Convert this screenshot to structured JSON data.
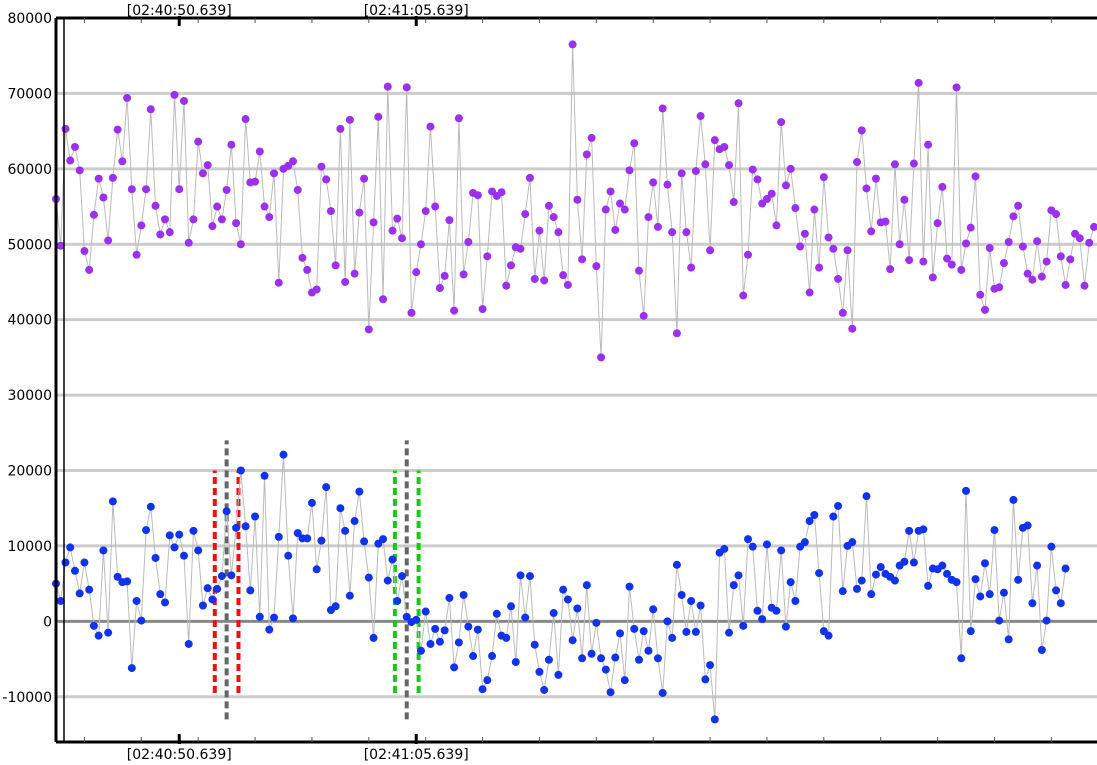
{
  "chart_data": {
    "type": "scatter",
    "title": "",
    "xlabel": "",
    "ylabel": "",
    "ylim": [
      -16000,
      80000
    ],
    "y_ticks": [
      80000,
      70000,
      60000,
      50000,
      40000,
      30000,
      20000,
      10000,
      0,
      -10000
    ],
    "y_tick_labels": [
      "80000",
      "70000",
      "60000",
      "50000",
      "40000",
      "30000",
      "20000",
      "10000",
      "0",
      "-10000"
    ],
    "grid": true,
    "legend": "none",
    "time_markers": [
      {
        "label": "[02:40:50.639]",
        "sample": 26
      },
      {
        "label": "[02:41:05.639]",
        "sample": 76
      }
    ],
    "event_markers": [
      {
        "color": "#ee1111",
        "sample": 33.5,
        "y_range": [
          -9500,
          20000
        ]
      },
      {
        "color": "#666666",
        "sample": 36,
        "y_range": [
          -13000,
          24000
        ]
      },
      {
        "color": "#ee1111",
        "sample": 38.5,
        "y_range": [
          -9500,
          20000
        ]
      },
      {
        "color": "#11cc11",
        "sample": 71.5,
        "y_range": [
          -9500,
          20000
        ]
      },
      {
        "color": "#666666",
        "sample": 74,
        "y_range": [
          -13000,
          24000
        ]
      },
      {
        "color": "#11cc11",
        "sample": 76.5,
        "y_range": [
          -9500,
          20000
        ]
      }
    ],
    "series": [
      {
        "color": "#9b30f0",
        "values": [
          56000,
          49800,
          65300,
          61100,
          62900,
          59800,
          49100,
          46600,
          53900,
          58700,
          56200,
          50500,
          58800,
          65200,
          61000,
          69400,
          57300,
          48600,
          52500,
          57300,
          67900,
          55100,
          51300,
          53300,
          51600,
          69800,
          57300,
          69000,
          50200,
          53300,
          63600,
          59400,
          60500,
          52400,
          55000,
          53300,
          57200,
          63200,
          52800,
          50000,
          66600,
          58200,
          58300,
          62300,
          55000,
          53600,
          59400,
          44900,
          60000,
          60400,
          61000,
          57200,
          48200,
          46600,
          43600,
          44000,
          60300,
          58600,
          54400,
          47200,
          65300,
          45000,
          66500,
          46100,
          54200,
          58700,
          38700,
          52900,
          66900,
          42700,
          70900,
          51800,
          53400,
          50800,
          70800,
          40900,
          46300,
          50000,
          54400,
          65600,
          55000,
          44200,
          45800,
          53200,
          41200,
          66700,
          46000,
          50300,
          56800,
          56500,
          41400,
          48400,
          57000,
          56400,
          56900,
          44500,
          47200,
          49600,
          49400,
          54000,
          58800,
          45400,
          51800,
          45200,
          55100,
          53600,
          51600,
          45900,
          44600,
          76500,
          55900,
          48000,
          61900,
          64100,
          47100,
          35000,
          54600,
          57000,
          51900,
          55400,
          54600,
          59800,
          63400,
          46500,
          40500,
          53600,
          58200,
          52300,
          68000,
          57900,
          51600,
          38200,
          59400,
          51600,
          46900,
          59700,
          67000,
          60600,
          49200,
          63800,
          62600,
          62900,
          60500,
          55600,
          68700,
          43200,
          48600,
          59900,
          58600,
          55400,
          56000,
          56700,
          52500,
          66200,
          57800,
          60000,
          54800,
          49700,
          51400,
          43600,
          54600,
          46900,
          58900,
          50900,
          49400,
          45400,
          40900,
          49200,
          38800,
          60900,
          65100,
          57400,
          51700,
          58700,
          52900,
          53000,
          46700,
          60600,
          50000,
          55900,
          47900,
          60700,
          71400,
          47700,
          63200,
          45600,
          52800,
          57600,
          48100,
          47300,
          70800,
          46600,
          50100,
          52200,
          59000,
          43300,
          41300,
          49500,
          44100,
          44300,
          47500,
          50300,
          53700,
          55100,
          49700,
          46100,
          45300,
          50400,
          45700,
          47700,
          54500,
          54000,
          48400,
          44600,
          48000,
          51400,
          50800,
          44500,
          50200,
          52300
        ]
      },
      {
        "color": "#1133ee",
        "values": [
          5000,
          2700,
          7800,
          9800,
          6700,
          3700,
          7800,
          4200,
          -600,
          -1900,
          9400,
          -1500,
          15900,
          5900,
          5200,
          5300,
          -6200,
          2700,
          100,
          12100,
          15200,
          8400,
          3600,
          2500,
          11400,
          9800,
          11500,
          8700,
          -3000,
          12000,
          9400,
          2100,
          4400,
          2900,
          4300,
          6000,
          14600,
          6100,
          12400,
          20000,
          12600,
          4100,
          13900,
          600,
          19300,
          -1100,
          500,
          11200,
          22100,
          8700,
          400,
          11700,
          11000,
          11000,
          15700,
          6900,
          10700,
          17800,
          1500,
          2000,
          15000,
          12000,
          3400,
          13300,
          17200,
          10600,
          5800,
          -2200,
          10300,
          10900,
          5400,
          8200,
          2700,
          6000,
          600,
          -100,
          200,
          -3900,
          1300,
          -3000,
          -1000,
          -2700,
          -1200,
          3100,
          -6100,
          -2800,
          3500,
          -700,
          -4600,
          -1100,
          -9000,
          -7800,
          -4600,
          1000,
          -1900,
          -2200,
          2000,
          -5400,
          6100,
          500,
          6000,
          -3100,
          -6700,
          -9100,
          -5100,
          1100,
          -7100,
          4200,
          2900,
          -2500,
          1700,
          -4900,
          4800,
          -4300,
          -200,
          -4900,
          -6400,
          -9400,
          -4800,
          -1600,
          -7800,
          4600,
          -1000,
          -5100,
          -1300,
          -3900,
          1600,
          -4900,
          -9500,
          0,
          -2200,
          7500,
          3500,
          -1400,
          2700,
          -1400,
          2100,
          -7700,
          -5800,
          -13000,
          9100,
          9600,
          -1500,
          4800,
          6100,
          -600,
          10900,
          9900,
          1400,
          300,
          10200,
          1800,
          1400,
          9400,
          -700,
          5200,
          2700,
          9900,
          10500,
          13300,
          14100,
          6400,
          -1300,
          -1900,
          13900,
          15300,
          4000,
          10000,
          10500,
          4300,
          5400,
          16600,
          3600,
          6200,
          7200,
          6300,
          5900,
          5400,
          7400,
          7900,
          12000,
          7800,
          12000,
          12200,
          4700,
          7000,
          6900,
          7400,
          6300,
          5500,
          5200,
          -4900,
          17300,
          -1300,
          5600,
          3300,
          7700,
          3600,
          12100,
          100,
          3800,
          -2400,
          16100,
          5500,
          12400,
          12700,
          2400,
          7400,
          -3800,
          100,
          9900,
          4100,
          2400,
          7000
        ]
      }
    ]
  }
}
